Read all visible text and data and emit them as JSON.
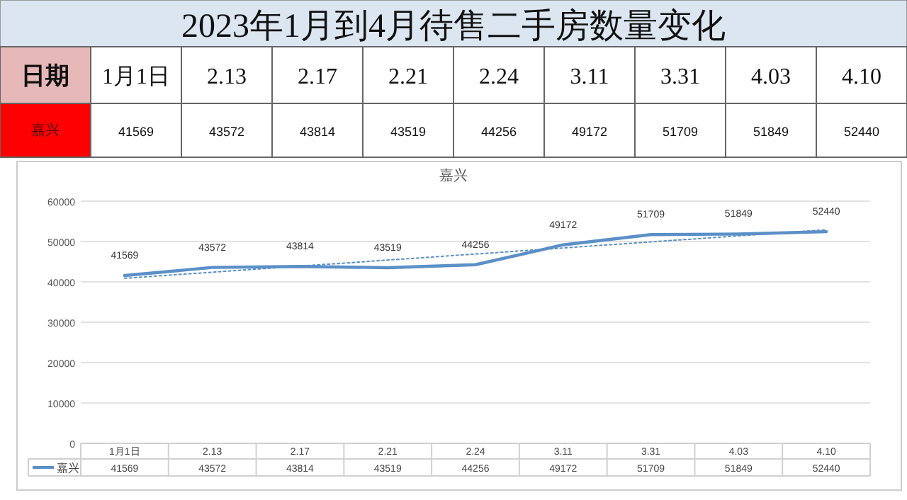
{
  "chart_data": {
    "type": "line",
    "title": "2023年1月到4月待售二手房数量变化",
    "subtitle": "嘉兴",
    "xlabel": "日期",
    "categories": [
      "1月1日",
      "2.13",
      "2.17",
      "2.21",
      "2.24",
      "3.11",
      "3.31",
      "4.03",
      "4.10"
    ],
    "series": [
      {
        "name": "嘉兴",
        "color": "#5b8fc7",
        "values": [
          41569,
          43572,
          43814,
          43519,
          44256,
          49172,
          51709,
          51849,
          52440
        ],
        "value_labels": [
          "41569",
          "43572",
          "43814",
          "43519",
          "44256",
          "49172",
          "51709",
          "51849",
          "52440"
        ]
      },
      {
        "type": "line",
        "x": [
          "1月1日",
          "4.10"
        ],
        "color": "#5b8fc7",
        "line_style": "dotted",
        "values": [
          40900,
          52900
        ]
      }
    ],
    "ylim": [
      0,
      60000
    ],
    "yticks": [
      0,
      10000,
      20000,
      30000,
      40000,
      50000,
      60000
    ],
    "grid": "y",
    "legend": "bottom",
    "marker": "none"
  }
}
